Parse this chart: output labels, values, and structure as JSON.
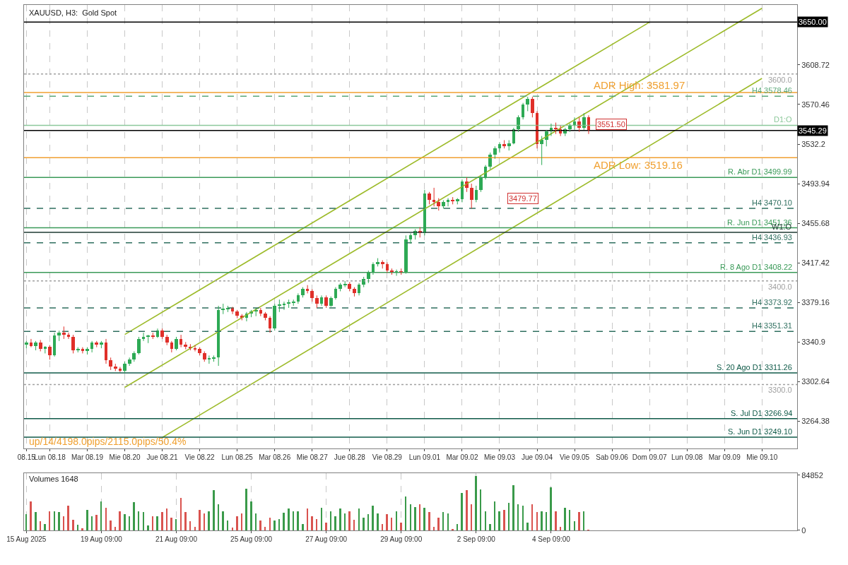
{
  "chart_data": [
    {
      "type": "candlestick",
      "title": "XAUUSD, H3:  Gold Spot",
      "categories": [
        "08.15",
        null,
        null,
        null,
        null,
        "Lun 08.18",
        null,
        null,
        null,
        null,
        null,
        null,
        null,
        "Mar 08.19",
        null,
        null,
        null,
        null,
        null,
        null,
        null,
        "Mie 08.20",
        null,
        null,
        null,
        null,
        null,
        null,
        null,
        "Jue 08.21",
        null,
        null,
        null,
        null,
        null,
        null,
        null,
        "Vie 08.22",
        null,
        null,
        null,
        null,
        null,
        null,
        null,
        "Lun 08.25",
        null,
        null,
        null,
        null,
        null,
        null,
        null,
        "Mar 08.26",
        null,
        null,
        null,
        null,
        null,
        null,
        null,
        "Mie 08.27",
        null,
        null,
        null,
        null,
        null,
        null,
        null,
        "Jue 08.28",
        null,
        null,
        null,
        null,
        null,
        null,
        null,
        "Vie 08.29",
        null,
        null,
        null,
        null,
        null,
        null,
        null,
        "Lun 09.01",
        null,
        null,
        null,
        null,
        null,
        null,
        null,
        "Mar 09.02",
        null,
        null,
        null,
        null,
        null,
        null,
        null,
        "Mie 09.03",
        null,
        null,
        null,
        null,
        null,
        null,
        null,
        "Jue 09.04",
        null,
        null,
        null,
        null,
        null,
        null,
        null,
        "Vie 09.05",
        null,
        null,
        null,
        null,
        null,
        null,
        null,
        "Sab 09.06",
        null,
        null,
        null,
        null,
        null,
        null,
        null,
        "Dom 09.07",
        null,
        null,
        null,
        null,
        null,
        null,
        null,
        "Lun 09.08",
        null,
        null,
        null,
        null,
        null,
        null,
        null,
        "Mar 09.09",
        null,
        null,
        null,
        null,
        null,
        null,
        null,
        "Mie 09.10",
        null,
        null,
        null,
        null,
        null,
        null,
        null
      ],
      "ohlc": [
        [
          3338,
          3342,
          3335,
          3340
        ],
        [
          3340,
          3344,
          3336,
          3337
        ],
        [
          3337,
          3342,
          3333,
          3340
        ],
        [
          3340,
          3343,
          3332,
          3334
        ],
        [
          3334,
          3337,
          3330,
          3336
        ],
        [
          3336,
          3338,
          3324,
          3328
        ],
        [
          3328,
          3350,
          3327,
          3347
        ],
        [
          3347,
          3352,
          3342,
          3350
        ],
        [
          3350,
          3356,
          3344,
          3348
        ],
        [
          3348,
          3350,
          3344,
          3346
        ],
        [
          3346,
          3348,
          3330,
          3333
        ],
        [
          3333,
          3336,
          3331,
          3334
        ],
        [
          3334,
          3336,
          3330,
          3332
        ],
        [
          3332,
          3336,
          3329,
          3334
        ],
        [
          3334,
          3342,
          3331,
          3340
        ],
        [
          3340,
          3342,
          3336,
          3338
        ],
        [
          3338,
          3342,
          3335,
          3340
        ],
        [
          3340,
          3344,
          3320,
          3323
        ],
        [
          3323,
          3326,
          3314,
          3317
        ],
        [
          3317,
          3320,
          3313,
          3315
        ],
        [
          3315,
          3317,
          3312,
          3313
        ],
        [
          3313,
          3322,
          3311,
          3320
        ],
        [
          3320,
          3326,
          3318,
          3324
        ],
        [
          3324,
          3332,
          3322,
          3330
        ],
        [
          3330,
          3346,
          3329,
          3344
        ],
        [
          3344,
          3350,
          3342,
          3346
        ],
        [
          3346,
          3348,
          3340,
          3347
        ],
        [
          3347,
          3350,
          3344,
          3346
        ],
        [
          3346,
          3354,
          3345,
          3352
        ],
        [
          3352,
          3354,
          3344,
          3346
        ],
        [
          3346,
          3348,
          3338,
          3340
        ],
        [
          3340,
          3342,
          3331,
          3334
        ],
        [
          3334,
          3346,
          3333,
          3344
        ],
        [
          3344,
          3348,
          3336,
          3338
        ],
        [
          3338,
          3341,
          3334,
          3336
        ],
        [
          3336,
          3339,
          3333,
          3335
        ],
        [
          3335,
          3338,
          3332,
          3334
        ],
        [
          3334,
          3336,
          3328,
          3330
        ],
        [
          3330,
          3332,
          3322,
          3324
        ],
        [
          3324,
          3328,
          3320,
          3325
        ],
        [
          3325,
          3328,
          3322,
          3326
        ],
        [
          3326,
          3376,
          3318,
          3372
        ],
        [
          3372,
          3378,
          3368,
          3373
        ],
        [
          3373,
          3376,
          3370,
          3374
        ],
        [
          3374,
          3375,
          3368,
          3370
        ],
        [
          3370,
          3372,
          3364,
          3366
        ],
        [
          3366,
          3368,
          3362,
          3364
        ],
        [
          3364,
          3370,
          3361,
          3368
        ],
        [
          3368,
          3372,
          3365,
          3370
        ],
        [
          3370,
          3374,
          3366,
          3372
        ],
        [
          3372,
          3374,
          3366,
          3368
        ],
        [
          3368,
          3370,
          3362,
          3364
        ],
        [
          3364,
          3366,
          3350,
          3354
        ],
        [
          3354,
          3378,
          3352,
          3376
        ],
        [
          3376,
          3382,
          3370,
          3377
        ],
        [
          3377,
          3380,
          3372,
          3378
        ],
        [
          3378,
          3382,
          3374,
          3379
        ],
        [
          3379,
          3382,
          3376,
          3380
        ],
        [
          3380,
          3388,
          3378,
          3386
        ],
        [
          3386,
          3394,
          3384,
          3392
        ],
        [
          3392,
          3396,
          3388,
          3390
        ],
        [
          3390,
          3392,
          3380,
          3383
        ],
        [
          3383,
          3386,
          3374,
          3378
        ],
        [
          3378,
          3386,
          3376,
          3384
        ],
        [
          3384,
          3386,
          3374,
          3376
        ],
        [
          3376,
          3385,
          3375,
          3383
        ],
        [
          3383,
          3394,
          3382,
          3392
        ],
        [
          3392,
          3398,
          3390,
          3396
        ],
        [
          3396,
          3400,
          3394,
          3397
        ],
        [
          3397,
          3399,
          3390,
          3392
        ],
        [
          3392,
          3394,
          3385,
          3388
        ],
        [
          3388,
          3398,
          3386,
          3396
        ],
        [
          3396,
          3404,
          3394,
          3402
        ],
        [
          3402,
          3410,
          3398,
          3408
        ],
        [
          3408,
          3418,
          3406,
          3416
        ],
        [
          3416,
          3422,
          3414,
          3418
        ],
        [
          3418,
          3420,
          3412,
          3416
        ],
        [
          3416,
          3418,
          3408,
          3410
        ],
        [
          3410,
          3412,
          3406,
          3408
        ],
        [
          3408,
          3411,
          3405,
          3409
        ],
        [
          3409,
          3412,
          3406,
          3408
        ],
        [
          3408,
          3444,
          3407,
          3440
        ],
        [
          3440,
          3446,
          3436,
          3444
        ],
        [
          3444,
          3450,
          3440,
          3448
        ],
        [
          3448,
          3452,
          3442,
          3446
        ],
        [
          3446,
          3488,
          3444,
          3484
        ],
        [
          3484,
          3486,
          3474,
          3478
        ],
        [
          3478,
          3490,
          3472,
          3476
        ],
        [
          3476,
          3480,
          3468,
          3472
        ],
        [
          3472,
          3478,
          3470,
          3476
        ],
        [
          3476,
          3480,
          3472,
          3478
        ],
        [
          3478,
          3481,
          3474,
          3477
        ],
        [
          3477,
          3480,
          3474,
          3479
        ],
        [
          3479,
          3498,
          3476,
          3496
        ],
        [
          3496,
          3500,
          3486,
          3490
        ],
        [
          3490,
          3494,
          3470,
          3478
        ],
        [
          3478,
          3492,
          3476,
          3488
        ],
        [
          3488,
          3502,
          3486,
          3500
        ],
        [
          3500,
          3512,
          3498,
          3510
        ],
        [
          3510,
          3524,
          3508,
          3522
        ],
        [
          3522,
          3530,
          3518,
          3528
        ],
        [
          3528,
          3534,
          3524,
          3532
        ],
        [
          3532,
          3536,
          3528,
          3530
        ],
        [
          3530,
          3536,
          3526,
          3533
        ],
        [
          3533,
          3548,
          3532,
          3546
        ],
        [
          3546,
          3560,
          3544,
          3558
        ],
        [
          3558,
          3572,
          3556,
          3570
        ],
        [
          3570,
          3578,
          3564,
          3576
        ],
        [
          3576,
          3578,
          3558,
          3562
        ],
        [
          3562,
          3564,
          3528,
          3532
        ],
        [
          3532,
          3540,
          3512,
          3536
        ],
        [
          3536,
          3546,
          3530,
          3544
        ],
        [
          3544,
          3552,
          3540,
          3548
        ],
        [
          3548,
          3553,
          3542,
          3546
        ],
        [
          3546,
          3550,
          3540,
          3542
        ],
        [
          3542,
          3548,
          3540,
          3546
        ],
        [
          3546,
          3552,
          3544,
          3550
        ],
        [
          3550,
          3558,
          3546,
          3554
        ],
        [
          3554,
          3558,
          3544,
          3548
        ],
        [
          3548,
          3562,
          3546,
          3558
        ],
        [
          3558,
          3560,
          3542,
          3545
        ],
        null,
        null,
        null,
        null,
        null,
        null,
        null,
        null,
        null,
        null,
        null,
        null,
        null,
        null,
        null,
        null,
        null,
        null,
        null,
        null,
        null,
        null,
        null,
        null,
        null,
        null,
        null,
        null,
        null,
        null,
        null,
        null,
        null,
        null,
        null,
        null,
        null,
        null,
        null,
        null,
        null,
        null,
        null,
        null
      ],
      "colors": [
        "#2eaa55",
        "#e0302a",
        "#2eaa55",
        "#e0302a",
        "#2eaa55",
        "#e0302a",
        "#2eaa55",
        "#2eaa55",
        "#e0302a",
        "#e0302a",
        "#e0302a",
        "#2eaa55",
        "#e0302a",
        "#2eaa55",
        "#2eaa55",
        "#e0302a",
        "#2eaa55",
        "#e0302a",
        "#e0302a",
        "#e0302a",
        "#e0302a",
        "#2eaa55",
        "#2eaa55",
        "#2eaa55",
        "#2eaa55",
        "#2eaa55",
        "#2eaa55",
        "#e0302a",
        "#2eaa55",
        "#e0302a",
        "#e0302a",
        "#e0302a",
        "#2eaa55",
        "#e0302a",
        "#e0302a",
        "#e0302a",
        "#e0302a",
        "#e0302a",
        "#e0302a",
        "#2eaa55",
        "#2eaa55",
        "#2eaa55",
        "#2eaa55",
        "#2eaa55",
        "#e0302a",
        "#e0302a",
        "#e0302a",
        "#2eaa55",
        "#2eaa55",
        "#2eaa55",
        "#e0302a",
        "#e0302a",
        "#e0302a",
        "#2eaa55",
        "#2eaa55",
        "#2eaa55",
        "#2eaa55",
        "#2eaa55",
        "#2eaa55",
        "#2eaa55",
        "#e0302a",
        "#e0302a",
        "#e0302a",
        "#2eaa55",
        "#e0302a",
        "#2eaa55",
        "#2eaa55",
        "#2eaa55",
        "#2eaa55",
        "#e0302a",
        "#e0302a",
        "#2eaa55",
        "#2eaa55",
        "#2eaa55",
        "#2eaa55",
        "#2eaa55",
        "#e0302a",
        "#e0302a",
        "#e0302a",
        "#2eaa55",
        "#e0302a",
        "#2eaa55",
        "#2eaa55",
        "#2eaa55",
        "#e0302a",
        "#2eaa55",
        "#e0302a",
        "#e0302a",
        "#e0302a",
        "#2eaa55",
        "#2eaa55",
        "#e0302a",
        "#2eaa55",
        "#2eaa55",
        "#e0302a",
        "#e0302a",
        "#2eaa55",
        "#2eaa55",
        "#2eaa55",
        "#2eaa55",
        "#2eaa55",
        "#2eaa55",
        "#e0302a",
        "#2eaa55",
        "#2eaa55",
        "#2eaa55",
        "#2eaa55",
        "#2eaa55",
        "#e0302a",
        "#e0302a",
        "#2eaa55",
        "#2eaa55",
        "#2eaa55",
        "#e0302a",
        "#e0302a",
        "#2eaa55",
        "#2eaa55",
        "#2eaa55",
        "#e0302a",
        "#2eaa55",
        "#e0302a",
        null,
        null,
        null,
        null,
        null,
        null,
        null,
        null,
        null,
        null,
        null,
        null,
        null,
        null,
        null,
        null,
        null,
        null,
        null,
        null,
        null,
        null,
        null,
        null,
        null,
        null,
        null,
        null,
        null,
        null,
        null,
        null,
        null,
        null,
        null,
        null,
        null,
        null,
        null,
        null,
        null,
        null,
        null,
        null
      ],
      "series": [
        {
          "type": "line",
          "color": "#9dbb2a",
          "x": [
            "Mie 08.20",
            "Dom 09.07"
          ],
          "values": [
            3348.3,
            3650.0
          ]
        },
        {
          "type": "line",
          "color": "#9dbb2a",
          "x": [
            "Mie 08.20",
            "Mie 09.10"
          ],
          "values": [
            3297.2,
            3663.4
          ]
        },
        {
          "type": "line",
          "color": "#9dbb2a",
          "x": [
            "Jue 08.21",
            "Mie 09.10"
          ],
          "values": [
            3248.8,
            3595.7
          ]
        }
      ],
      "ylim": [
        3238.2,
        3666.4
      ],
      "yticks": [
        3264.38,
        3302.64,
        3340.9,
        3379.16,
        3417.42,
        3455.68,
        3493.94,
        3532.2,
        3570.46,
        3608.72
      ],
      "grid": "x",
      "ref_lines": [
        {
          "axis": "y",
          "value": 3650.0,
          "label": "3650.00",
          "color": "#000000",
          "line_style": "solid"
        },
        {
          "axis": "y",
          "value": 3600.0,
          "label": "3600.0",
          "color": "#a0a0a0",
          "line_style": "dotted"
        },
        {
          "axis": "y",
          "value": 3581.97,
          "label": "ADR High: 3581.97",
          "color": "#f0a030",
          "line_style": "solid"
        },
        {
          "axis": "y",
          "value": 3578.46,
          "label": "H4 3578.46",
          "color": "#5aa878",
          "line_style": "dashed"
        },
        {
          "axis": "y",
          "value": 3550.37,
          "label": "D1:O",
          "color": "#8cc89a",
          "line_style": "solid"
        },
        {
          "axis": "y",
          "value": 3545.29,
          "label": "3545.29",
          "color": "#000000",
          "line_style": "solid"
        },
        {
          "axis": "y",
          "value": 3519.16,
          "label": "ADR Low: 3519.16",
          "color": "#f0a030",
          "line_style": "solid"
        },
        {
          "axis": "y",
          "value": 3499.99,
          "label": "R. Abr D1 3499.99",
          "color": "#3a9a58",
          "line_style": "solid"
        },
        {
          "axis": "y",
          "value": 3470.1,
          "label": "H4 3470.10",
          "color": "#2f6f5f",
          "line_style": "dashed"
        },
        {
          "axis": "y",
          "value": 3451.36,
          "label": "R. Jun D1 3451.36",
          "color": "#3a9a58",
          "line_style": "solid"
        },
        {
          "axis": "y",
          "value": 3447,
          "label": "W1:O",
          "color": "#1e3a32",
          "line_style": "solid"
        },
        {
          "axis": "y",
          "value": 3436.93,
          "label": "H4 3436.93",
          "color": "#2f6f5f",
          "line_style": "dashed"
        },
        {
          "axis": "y",
          "value": 3408.22,
          "label": "R. 8 Ago D1 3408.22",
          "color": "#3a9a58",
          "line_style": "solid"
        },
        {
          "axis": "y",
          "value": 3400.0,
          "label": "3400.0",
          "color": "#a0a0a0",
          "line_style": "dotted"
        },
        {
          "axis": "y",
          "value": 3373.92,
          "label": "H4 3373.92",
          "color": "#2f6f5f",
          "line_style": "dashed"
        },
        {
          "axis": "y",
          "value": 3351.31,
          "label": "H4 3351.31",
          "color": "#2f6f5f",
          "line_style": "dashed"
        },
        {
          "axis": "y",
          "value": 3311.26,
          "label": "S. 20 Ago D1 3311.26",
          "color": "#0f5a48",
          "line_style": "solid"
        },
        {
          "axis": "y",
          "value": 3300.0,
          "label": "3300.0",
          "color": "#a0a0a0",
          "line_style": "dotted"
        },
        {
          "axis": "y",
          "value": 3266.94,
          "label": "S. Jul D1 3266.94",
          "color": "#0f5a48",
          "line_style": "solid"
        },
        {
          "axis": "y",
          "value": 3249.1,
          "label": "S. Jun D1 3249.10",
          "color": "#0f5a48",
          "line_style": "solid"
        }
      ],
      "annotations": [
        "up/14/4198.0pips/2115.0pips/50.4%",
        {
          "text": "3479.77",
          "y": 3479.77
        },
        {
          "text": "3551.50",
          "y": 3551.5
        }
      ]
    },
    {
      "type": "bar",
      "title": "Volumes 1648",
      "categories": [
        "15 Aug 2025",
        null,
        null,
        null,
        null,
        null,
        null,
        null,
        null,
        null,
        null,
        null,
        null,
        null,
        null,
        null,
        "19 Aug 09:00",
        null,
        null,
        null,
        null,
        null,
        null,
        null,
        null,
        null,
        null,
        null,
        null,
        null,
        null,
        null,
        "21 Aug 09:00",
        null,
        null,
        null,
        null,
        null,
        null,
        null,
        null,
        null,
        null,
        null,
        null,
        null,
        null,
        null,
        "25 Aug 09:00",
        null,
        null,
        null,
        null,
        null,
        null,
        null,
        null,
        null,
        null,
        null,
        null,
        null,
        null,
        null,
        "27 Aug 09:00",
        null,
        null,
        null,
        null,
        null,
        null,
        null,
        null,
        null,
        null,
        null,
        null,
        null,
        null,
        null,
        "29 Aug 09:00",
        null,
        null,
        null,
        null,
        null,
        null,
        null,
        null,
        null,
        null,
        null,
        null,
        null,
        null,
        null,
        "2 Sep 09:00",
        null,
        null,
        null,
        null,
        null,
        null,
        null,
        null,
        null,
        null,
        null,
        null,
        null,
        null,
        null,
        "4 Sep 09:00",
        null,
        null,
        null,
        null,
        null,
        null,
        null,
        null,
        null,
        null,
        null,
        null,
        null,
        null,
        null,
        null,
        null,
        null,
        null,
        null,
        null,
        null,
        null,
        null,
        null,
        null,
        null,
        null,
        null,
        null,
        null,
        null,
        null,
        null,
        null,
        null,
        null,
        null,
        null,
        null,
        null,
        null,
        null,
        null,
        null,
        null,
        null,
        null,
        null,
        null,
        null,
        null
      ],
      "values": [
        25000,
        45000,
        28000,
        14000,
        10000,
        30000,
        30000,
        28000,
        22000,
        38000,
        16000,
        9000,
        3000,
        32000,
        22000,
        24000,
        45000,
        35000,
        15000,
        6000,
        30000,
        25000,
        22000,
        44000,
        30000,
        28000,
        8000,
        22000,
        22000,
        28000,
        34000,
        20000,
        18000,
        50000,
        28000,
        14000,
        6000,
        32000,
        26000,
        30000,
        62000,
        40000,
        30000,
        15000,
        5000,
        22000,
        26000,
        64000,
        45000,
        26000,
        15000,
        6000,
        20000,
        15000,
        17000,
        27000,
        34000,
        30000,
        30000,
        10000,
        34000,
        22000,
        18000,
        35000,
        12000,
        30000,
        22000,
        34000,
        26000,
        30000,
        16000,
        34000,
        20000,
        25000,
        38000,
        26000,
        10000,
        25000,
        20000,
        30000,
        12000,
        52000,
        40000,
        36000,
        40000,
        35000,
        28000,
        6000,
        20000,
        28000,
        26000,
        2000,
        10000,
        58000,
        62000,
        40000,
        84000,
        63000,
        30000,
        10000,
        45000,
        30000,
        32000,
        43000,
        70000,
        40000,
        38000,
        12000,
        40000,
        28000,
        30000,
        28000,
        66000,
        30000,
        6000,
        35000,
        32000,
        14000,
        28000,
        30000,
        1000,
        null,
        null,
        null,
        null,
        null,
        null,
        null,
        null,
        null,
        null,
        null,
        null,
        null,
        null,
        null,
        null,
        null,
        null,
        null,
        null,
        null,
        null,
        null,
        null,
        null,
        null,
        null,
        null,
        null,
        null,
        null,
        null,
        null,
        null,
        null,
        null,
        null,
        null,
        null,
        null,
        null,
        null,
        null,
        null
      ],
      "colors": [
        "#3a9a4a",
        "#d9534f",
        "#3a9a4a",
        "#d9534f",
        "#3a9a4a",
        "#d9534f",
        "#3a9a4a",
        "#3a9a4a",
        "#d9534f",
        "#d9534f",
        "#d9534f",
        "#3a9a4a",
        "#d9534f",
        "#3a9a4a",
        "#3a9a4a",
        "#d9534f",
        "#3a9a4a",
        "#d9534f",
        "#d9534f",
        "#d9534f",
        "#d9534f",
        "#3a9a4a",
        "#3a9a4a",
        "#3a9a4a",
        "#3a9a4a",
        "#3a9a4a",
        "#3a9a4a",
        "#d9534f",
        "#3a9a4a",
        "#d9534f",
        "#d9534f",
        "#d9534f",
        "#3a9a4a",
        "#d9534f",
        "#d9534f",
        "#d9534f",
        "#d9534f",
        "#d9534f",
        "#d9534f",
        "#3a9a4a",
        "#3a9a4a",
        "#3a9a4a",
        "#3a9a4a",
        "#3a9a4a",
        "#d9534f",
        "#d9534f",
        "#d9534f",
        "#3a9a4a",
        "#3a9a4a",
        "#3a9a4a",
        "#d9534f",
        "#d9534f",
        "#d9534f",
        "#3a9a4a",
        "#3a9a4a",
        "#3a9a4a",
        "#3a9a4a",
        "#3a9a4a",
        "#3a9a4a",
        "#3a9a4a",
        "#d9534f",
        "#d9534f",
        "#d9534f",
        "#3a9a4a",
        "#d9534f",
        "#3a9a4a",
        "#3a9a4a",
        "#3a9a4a",
        "#3a9a4a",
        "#d9534f",
        "#d9534f",
        "#3a9a4a",
        "#3a9a4a",
        "#3a9a4a",
        "#3a9a4a",
        "#3a9a4a",
        "#d9534f",
        "#d9534f",
        "#d9534f",
        "#3a9a4a",
        "#d9534f",
        "#3a9a4a",
        "#3a9a4a",
        "#3a9a4a",
        "#d9534f",
        "#3a9a4a",
        "#d9534f",
        "#d9534f",
        "#d9534f",
        "#3a9a4a",
        "#3a9a4a",
        "#d9534f",
        "#3a9a4a",
        "#3a9a4a",
        "#d9534f",
        "#d9534f",
        "#3a9a4a",
        "#3a9a4a",
        "#3a9a4a",
        "#3a9a4a",
        "#3a9a4a",
        "#3a9a4a",
        "#d9534f",
        "#3a9a4a",
        "#3a9a4a",
        "#3a9a4a",
        "#3a9a4a",
        "#3a9a4a",
        "#d9534f",
        "#d9534f",
        "#3a9a4a",
        "#3a9a4a",
        "#3a9a4a",
        "#d9534f",
        "#d9534f",
        "#3a9a4a",
        "#3a9a4a",
        "#3a9a4a",
        "#d9534f",
        "#3a9a4a",
        "#d9534f",
        null,
        null,
        null,
        null,
        null,
        null,
        null,
        null,
        null,
        null,
        null,
        null,
        null,
        null,
        null,
        null,
        null,
        null,
        null,
        null,
        null,
        null,
        null,
        null,
        null,
        null,
        null,
        null,
        null,
        null,
        null,
        null,
        null,
        null,
        null,
        null,
        null,
        null,
        null,
        null,
        null,
        null,
        null,
        null
      ],
      "ylim": [
        0,
        88000
      ],
      "yticks": [
        0,
        84852
      ],
      "grid": "x"
    }
  ]
}
